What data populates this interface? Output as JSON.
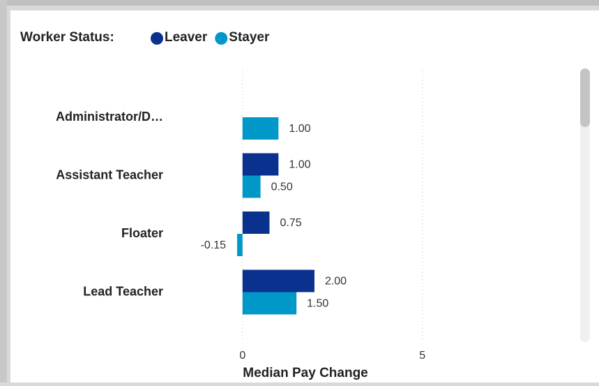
{
  "chart_data": {
    "type": "hbar",
    "legend_title": "Worker Status:",
    "categories": [
      "Administrator/D…",
      "Assistant Teacher",
      "Floater",
      "Lead Teacher"
    ],
    "series": [
      {
        "name": "Leaver",
        "color": "#0b318f",
        "values": [
          null,
          1,
          0.75,
          2
        ],
        "value_labels": [
          null,
          "1.00",
          "0.75",
          "2.00"
        ]
      },
      {
        "name": "Stayer",
        "color": "#0097c9",
        "values": [
          1,
          0.5,
          -0.15,
          1.5
        ],
        "value_labels": [
          "1.00",
          "0.50",
          "-0.15",
          "1.50"
        ]
      }
    ],
    "xlabel": "Median Pay Change",
    "xlim": [
      -0.5,
      9
    ],
    "xticks": [
      0,
      5
    ],
    "grid": true
  }
}
